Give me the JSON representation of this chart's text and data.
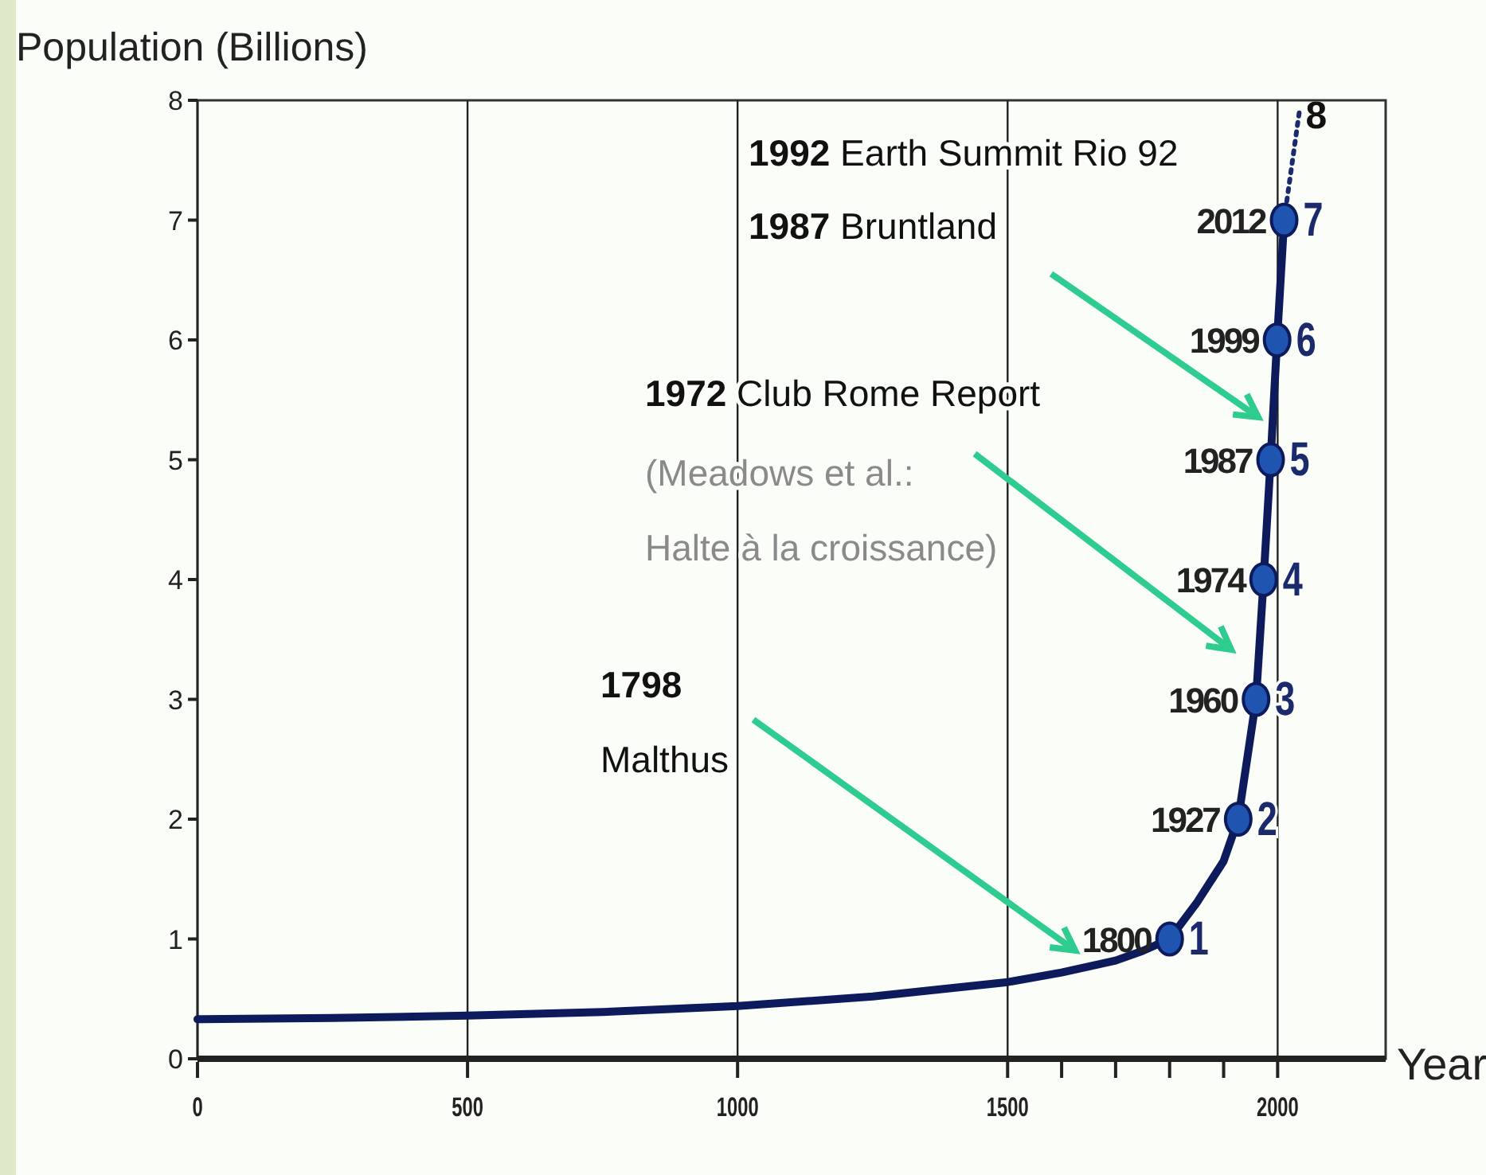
{
  "chart_data": {
    "type": "line",
    "ylabel": "Population (Billions)",
    "xlabel": "Year",
    "xlim": [
      0,
      2200
    ],
    "xticks": [
      0,
      500,
      1000,
      1500,
      {
        "value": 1600,
        "label": null
      },
      {
        "value": 1700,
        "label": null
      },
      {
        "value": 1800,
        "label": null
      },
      {
        "value": 1900,
        "label": null
      },
      2000
    ],
    "ylim": [
      0,
      8
    ],
    "yticks": [
      0,
      1,
      2,
      3,
      4,
      5,
      6,
      7,
      8
    ],
    "grid": "x",
    "series": [
      {
        "color": "#0d1a5c",
        "line_style": "solid",
        "marker": "none",
        "x": [
          0,
          250,
          500,
          750,
          1000,
          1250,
          1500,
          1600,
          1700,
          1750,
          1800,
          1850,
          1900,
          1927,
          1960,
          1974,
          1987,
          1999,
          2012
        ],
        "values": [
          0.33,
          0.34,
          0.36,
          0.39,
          0.44,
          0.52,
          0.64,
          0.72,
          0.82,
          0.9,
          1,
          1.3,
          1.65,
          2,
          3,
          4,
          5,
          6,
          7
        ]
      },
      {
        "type": "line",
        "color": "#1a2a6c",
        "line_style": "dotted",
        "marker": "none",
        "x": [
          2012,
          2040
        ],
        "values": [
          7,
          7.9
        ]
      },
      {
        "type": "scatter",
        "color": "#1f55b0",
        "marker": "circle",
        "x": [
          1800,
          1927,
          1960,
          1974,
          1987,
          1999,
          2012
        ],
        "values": [
          1,
          2,
          3,
          4,
          5,
          6,
          7
        ],
        "value_labels": [
          "1",
          "2",
          "3",
          "4",
          "5",
          "6",
          "7"
        ]
      }
    ],
    "annotations": [
      "1992 Earth Summit Rio 92",
      "1987 Bruntland",
      "1972 Club Rome Report",
      "(Meadows et al.: Halte à la croissance)",
      "1798 Malthus",
      {
        "text": "1800",
        "x": 1800,
        "y": 1
      },
      {
        "text": "1927",
        "x": 1927,
        "y": 2
      },
      {
        "text": "1960",
        "x": 1960,
        "y": 3
      },
      {
        "text": "1974",
        "x": 1974,
        "y": 4
      },
      {
        "text": "1987",
        "x": 1987,
        "y": 5
      },
      {
        "text": "1999",
        "x": 1999,
        "y": 6
      },
      {
        "text": "2012",
        "x": 2012,
        "y": 7
      },
      {
        "text": "8",
        "x": 2040,
        "y": 7.9
      }
    ]
  }
}
